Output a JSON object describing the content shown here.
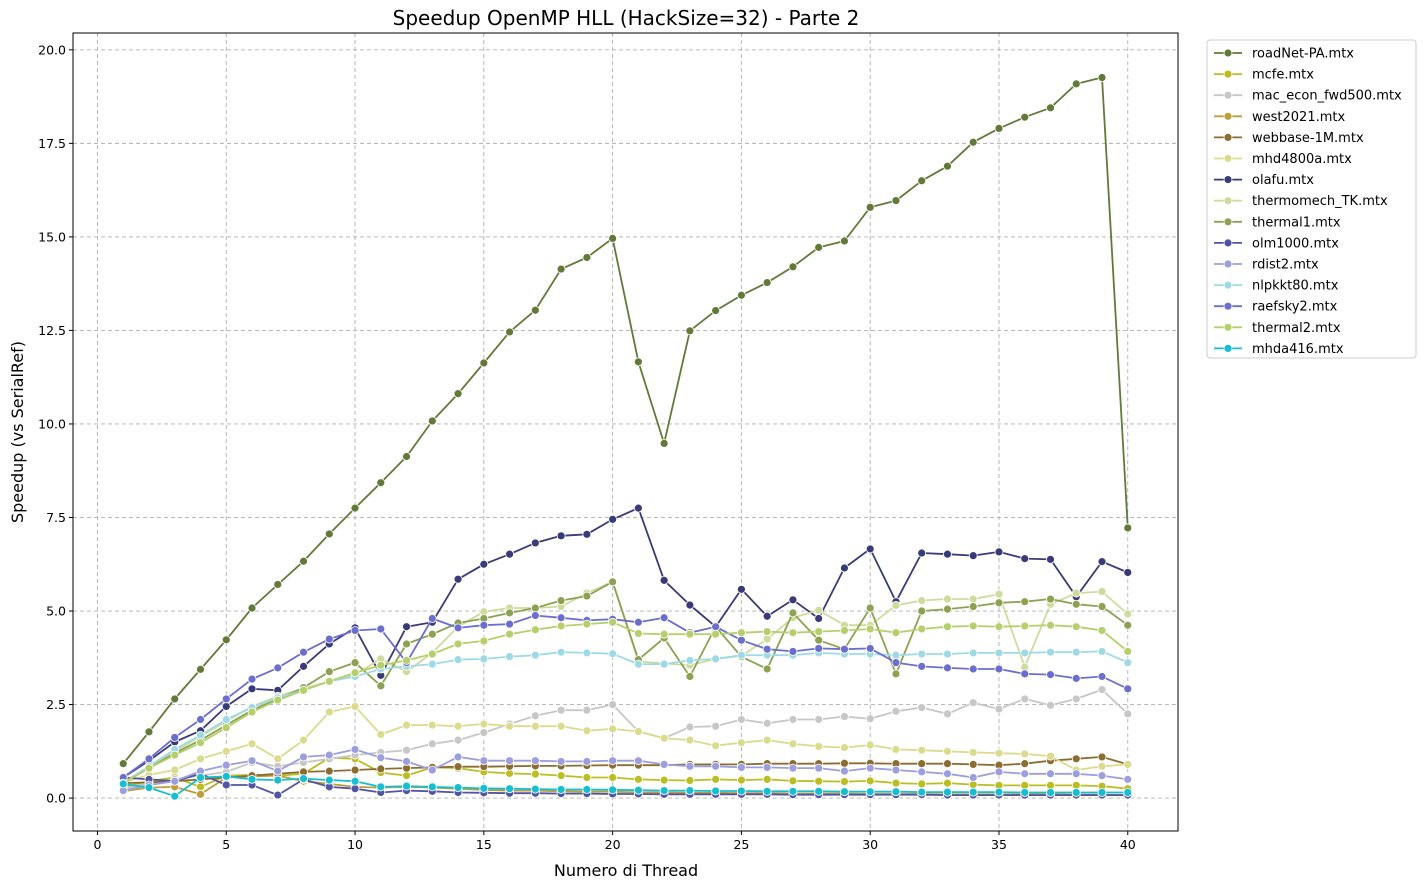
{
  "chart_data": {
    "type": "line",
    "title": "Speedup OpenMP HLL (HackSize=32) - Parte 2",
    "xlabel": "Numero di Thread",
    "ylabel": "Speedup (vs SerialRef)",
    "xlim": [
      -0.95,
      41.95
    ],
    "ylim": [
      -0.88,
      20.45
    ],
    "xticks": [
      0,
      5,
      10,
      15,
      20,
      25,
      30,
      35,
      40
    ],
    "yticks": [
      0.0,
      2.5,
      5.0,
      7.5,
      10.0,
      12.5,
      15.0,
      17.5,
      20.0
    ],
    "grid": true,
    "legend_position": "outside-top-right",
    "x": [
      1,
      2,
      3,
      4,
      5,
      6,
      7,
      8,
      9,
      10,
      11,
      12,
      13,
      14,
      15,
      16,
      17,
      18,
      19,
      20,
      21,
      22,
      23,
      24,
      25,
      26,
      27,
      28,
      29,
      30,
      31,
      32,
      33,
      34,
      35,
      36,
      37,
      38,
      39,
      40
    ],
    "series": [
      {
        "name": "roadNet-PA.mtx",
        "color": "#637939",
        "values": [
          0.92,
          1.77,
          2.65,
          3.44,
          4.23,
          5.08,
          5.71,
          6.33,
          7.06,
          7.75,
          8.43,
          9.13,
          10.08,
          10.81,
          11.63,
          12.46,
          13.04,
          14.14,
          14.45,
          14.96,
          11.66,
          9.48,
          12.49,
          13.03,
          13.44,
          13.78,
          14.2,
          14.72,
          14.89,
          15.79,
          15.97,
          16.5,
          16.89,
          17.53,
          17.9,
          18.2,
          18.45,
          19.09,
          19.26,
          7.22
        ]
      },
      {
        "name": "mcfe.mtx",
        "color": "#bcbd22",
        "values": [
          0.3,
          0.45,
          0.55,
          0.3,
          0.6,
          0.62,
          0.6,
          0.65,
          1.08,
          1.05,
          0.68,
          0.6,
          0.82,
          0.8,
          0.7,
          0.66,
          0.64,
          0.6,
          0.55,
          0.55,
          0.5,
          0.48,
          0.47,
          0.5,
          0.48,
          0.5,
          0.46,
          0.45,
          0.44,
          0.46,
          0.4,
          0.38,
          0.4,
          0.36,
          0.34,
          0.34,
          0.34,
          0.34,
          0.32,
          0.25
        ]
      },
      {
        "name": "mac_econ_fwd500.mtx",
        "color": "#c7c7c7",
        "values": [
          0.25,
          0.4,
          0.5,
          0.6,
          0.7,
          0.95,
          0.85,
          0.95,
          1.05,
          1.15,
          1.22,
          1.28,
          1.45,
          1.55,
          1.75,
          1.98,
          2.2,
          2.35,
          2.35,
          2.5,
          1.78,
          1.6,
          1.9,
          1.92,
          2.1,
          2.0,
          2.1,
          2.1,
          2.18,
          2.12,
          2.32,
          2.42,
          2.25,
          2.55,
          2.38,
          2.65,
          2.48,
          2.65,
          2.9,
          2.25
        ]
      },
      {
        "name": "west2021.mtx",
        "color": "#bd9e39",
        "values": [
          0.18,
          0.28,
          0.3,
          0.1,
          0.55,
          0.58,
          0.6,
          0.45,
          0.38,
          0.3,
          0.28,
          0.3,
          0.28,
          0.25,
          0.22,
          0.2,
          0.2,
          0.18,
          0.17,
          0.17,
          0.15,
          0.15,
          0.14,
          0.14,
          0.13,
          0.13,
          0.12,
          0.12,
          0.12,
          0.11,
          0.11,
          0.11,
          0.1,
          0.1,
          0.1,
          0.1,
          0.1,
          0.09,
          0.09,
          0.08
        ]
      },
      {
        "name": "webbase-1M.mtx",
        "color": "#8c6d31",
        "values": [
          0.4,
          0.42,
          0.45,
          0.5,
          0.55,
          0.6,
          0.65,
          0.7,
          0.72,
          0.75,
          0.78,
          0.8,
          0.82,
          0.84,
          0.84,
          0.85,
          0.86,
          0.86,
          0.87,
          0.88,
          0.88,
          0.88,
          0.9,
          0.9,
          0.9,
          0.92,
          0.92,
          0.92,
          0.93,
          0.93,
          0.92,
          0.92,
          0.92,
          0.9,
          0.88,
          0.92,
          1.0,
          1.05,
          1.1,
          0.9
        ]
      },
      {
        "name": "mhd4800a.mtx",
        "color": "#dbdb8d",
        "values": [
          0.42,
          0.62,
          0.75,
          1.05,
          1.25,
          1.45,
          1.05,
          1.55,
          2.3,
          2.45,
          1.7,
          1.95,
          1.95,
          1.92,
          1.98,
          1.92,
          1.92,
          1.92,
          1.8,
          1.85,
          1.78,
          1.6,
          1.55,
          1.4,
          1.48,
          1.55,
          1.45,
          1.38,
          1.35,
          1.42,
          1.3,
          1.28,
          1.25,
          1.22,
          1.2,
          1.18,
          1.12,
          0.75,
          0.85,
          0.9
        ]
      },
      {
        "name": "olafu.mtx",
        "color": "#393b79",
        "values": [
          0.55,
          1.0,
          1.5,
          1.8,
          2.45,
          2.92,
          2.88,
          3.52,
          4.12,
          4.55,
          3.28,
          4.58,
          4.7,
          5.85,
          6.25,
          6.52,
          6.82,
          7.01,
          7.05,
          7.45,
          7.75,
          5.82,
          5.16,
          4.58,
          5.58,
          4.86,
          5.3,
          4.8,
          6.15,
          6.66,
          5.25,
          6.55,
          6.52,
          6.48,
          6.58,
          6.4,
          6.38,
          5.38,
          6.32,
          6.03
        ]
      },
      {
        "name": "thermomech_TK.mtx",
        "color": "#cedb9c",
        "values": [
          0.45,
          0.8,
          1.25,
          1.65,
          2.05,
          2.45,
          2.72,
          2.92,
          3.12,
          3.3,
          3.72,
          3.38,
          3.88,
          4.58,
          4.98,
          5.08,
          5.08,
          5.12,
          5.48,
          5.78,
          3.65,
          3.6,
          3.55,
          3.72,
          3.8,
          4.25,
          4.82,
          5.02,
          4.62,
          4.62,
          5.15,
          5.28,
          5.32,
          5.32,
          5.45,
          3.5,
          5.18,
          5.48,
          5.52,
          4.92
        ]
      },
      {
        "name": "thermal1.mtx",
        "color": "#8ca252",
        "values": [
          0.4,
          0.8,
          1.2,
          1.55,
          1.95,
          2.35,
          2.65,
          2.95,
          3.38,
          3.62,
          3.0,
          4.12,
          4.38,
          4.68,
          4.8,
          4.95,
          5.08,
          5.28,
          5.4,
          5.78,
          3.7,
          4.28,
          3.25,
          4.58,
          3.78,
          3.45,
          4.95,
          4.22,
          3.98,
          5.08,
          3.32,
          5.0,
          5.05,
          5.12,
          5.22,
          5.25,
          5.32,
          5.18,
          5.12,
          4.62
        ]
      },
      {
        "name": "olm1000.mtx",
        "color": "#5254a3",
        "values": [
          0.55,
          0.5,
          0.45,
          0.65,
          0.35,
          0.35,
          0.08,
          0.5,
          0.3,
          0.25,
          0.15,
          0.2,
          0.18,
          0.15,
          0.14,
          0.13,
          0.13,
          0.12,
          0.12,
          0.11,
          0.11,
          0.1,
          0.1,
          0.1,
          0.1,
          0.1,
          0.09,
          0.09,
          0.09,
          0.09,
          0.09,
          0.09,
          0.08,
          0.08,
          0.08,
          0.08,
          0.08,
          0.08,
          0.08,
          0.08
        ]
      },
      {
        "name": "rdist2.mtx",
        "color": "#9c9ede",
        "values": [
          0.2,
          0.35,
          0.45,
          0.72,
          0.88,
          1.0,
          0.72,
          1.1,
          1.15,
          1.3,
          1.08,
          0.98,
          0.75,
          1.1,
          1.0,
          1.0,
          1.0,
          0.98,
          0.98,
          1.0,
          1.0,
          0.9,
          0.85,
          0.85,
          0.82,
          0.82,
          0.8,
          0.8,
          0.72,
          0.8,
          0.75,
          0.7,
          0.65,
          0.55,
          0.7,
          0.65,
          0.65,
          0.65,
          0.6,
          0.5
        ]
      },
      {
        "name": "nlpkkt80.mtx",
        "color": "#9edae5",
        "values": [
          0.4,
          0.85,
          1.3,
          1.68,
          2.1,
          2.42,
          2.68,
          2.88,
          3.12,
          3.25,
          3.45,
          3.52,
          3.58,
          3.7,
          3.72,
          3.78,
          3.82,
          3.9,
          3.88,
          3.86,
          3.58,
          3.58,
          3.68,
          3.72,
          3.82,
          3.82,
          3.82,
          3.88,
          3.85,
          3.85,
          3.82,
          3.85,
          3.85,
          3.88,
          3.88,
          3.88,
          3.9,
          3.9,
          3.92,
          3.62
        ]
      },
      {
        "name": "raefsky2.mtx",
        "color": "#6b6ecf",
        "values": [
          0.55,
          1.05,
          1.62,
          2.1,
          2.65,
          3.18,
          3.48,
          3.9,
          4.25,
          4.48,
          4.52,
          3.62,
          4.8,
          4.55,
          4.62,
          4.65,
          4.88,
          4.82,
          4.75,
          4.78,
          4.7,
          4.82,
          4.42,
          4.58,
          4.22,
          3.98,
          3.92,
          4.0,
          3.98,
          4.0,
          3.62,
          3.52,
          3.48,
          3.45,
          3.45,
          3.32,
          3.3,
          3.2,
          3.25,
          2.92
        ]
      },
      {
        "name": "thermal2.mtx",
        "color": "#b5cf6b",
        "values": [
          0.4,
          0.8,
          1.15,
          1.48,
          1.88,
          2.3,
          2.62,
          2.88,
          3.12,
          3.35,
          3.55,
          3.68,
          3.85,
          4.12,
          4.2,
          4.38,
          4.5,
          4.6,
          4.65,
          4.7,
          4.4,
          4.38,
          4.38,
          4.38,
          4.42,
          4.45,
          4.42,
          4.45,
          4.48,
          4.52,
          4.42,
          4.52,
          4.58,
          4.6,
          4.58,
          4.6,
          4.62,
          4.58,
          4.48,
          3.92
        ]
      },
      {
        "name": "mhda416.mtx",
        "color": "#17becf",
        "values": [
          0.38,
          0.28,
          0.05,
          0.55,
          0.58,
          0.5,
          0.48,
          0.52,
          0.48,
          0.45,
          0.3,
          0.32,
          0.3,
          0.28,
          0.26,
          0.25,
          0.24,
          0.23,
          0.23,
          0.22,
          0.21,
          0.2,
          0.2,
          0.19,
          0.19,
          0.18,
          0.18,
          0.18,
          0.17,
          0.17,
          0.17,
          0.16,
          0.16,
          0.16,
          0.16,
          0.15,
          0.15,
          0.15,
          0.15,
          0.15
        ]
      }
    ]
  }
}
